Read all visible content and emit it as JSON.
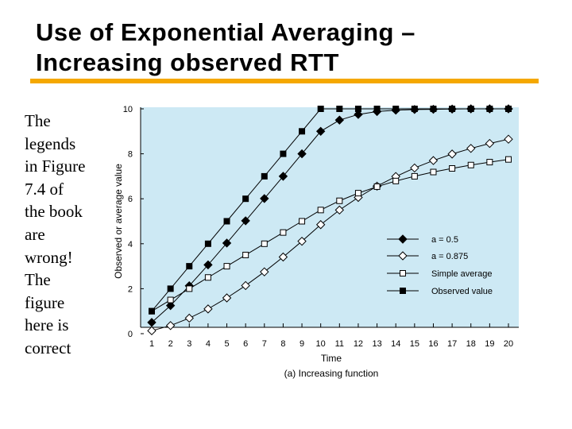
{
  "slide": {
    "title_line1": "Use of Exponential Averaging –",
    "title_line2": "Increasing observed RTT",
    "accent_color": "#f5a800",
    "body_text": "The\nlegends\nin Figure\n7.4 of\nthe book\nare\nwrong!\nThe\nfigure\nhere is\ncorrect"
  },
  "chart_data": {
    "type": "line",
    "title": "",
    "caption": "(a)  Increasing function",
    "xlabel": "Time",
    "ylabel": "Observed or average value",
    "xlim": [
      0.5,
      20.5
    ],
    "ylim": [
      0,
      10
    ],
    "x_ticks": [
      1,
      2,
      3,
      4,
      5,
      6,
      7,
      8,
      9,
      10,
      11,
      12,
      13,
      14,
      15,
      16,
      17,
      18,
      19,
      20
    ],
    "y_ticks": [
      0,
      2,
      4,
      6,
      8,
      10
    ],
    "background": "#cde9f4",
    "x": [
      1,
      2,
      3,
      4,
      5,
      6,
      7,
      8,
      9,
      10,
      11,
      12,
      13,
      14,
      15,
      16,
      17,
      18,
      19,
      20
    ],
    "legend_position": "right-middle",
    "series": [
      {
        "name": "a = 0.5",
        "marker": "diamond-filled",
        "values": [
          0.5,
          1.25,
          2.13,
          3.06,
          4.03,
          5.02,
          6.01,
          7.0,
          8.0,
          9.0,
          9.5,
          9.75,
          9.88,
          9.94,
          9.97,
          9.98,
          9.99,
          10.0,
          10.0,
          10.0
        ]
      },
      {
        "name": "a = 0.875",
        "marker": "diamond-open",
        "values": [
          0.13,
          0.36,
          0.69,
          1.1,
          1.59,
          2.14,
          2.75,
          3.41,
          4.11,
          4.85,
          5.5,
          6.06,
          6.56,
          6.99,
          7.37,
          7.7,
          7.99,
          8.24,
          8.46,
          8.65
        ]
      },
      {
        "name": "Simple average",
        "marker": "square-open",
        "values": [
          1.0,
          1.5,
          2.0,
          2.5,
          3.0,
          3.5,
          4.0,
          4.5,
          5.0,
          5.5,
          5.91,
          6.25,
          6.54,
          6.79,
          7.0,
          7.19,
          7.35,
          7.5,
          7.63,
          7.75
        ]
      },
      {
        "name": "Observed value",
        "marker": "square-filled",
        "values": [
          1,
          2,
          3,
          4,
          5,
          6,
          7,
          8,
          9,
          10,
          10,
          10,
          10,
          10,
          10,
          10,
          10,
          10,
          10,
          10
        ]
      }
    ]
  }
}
